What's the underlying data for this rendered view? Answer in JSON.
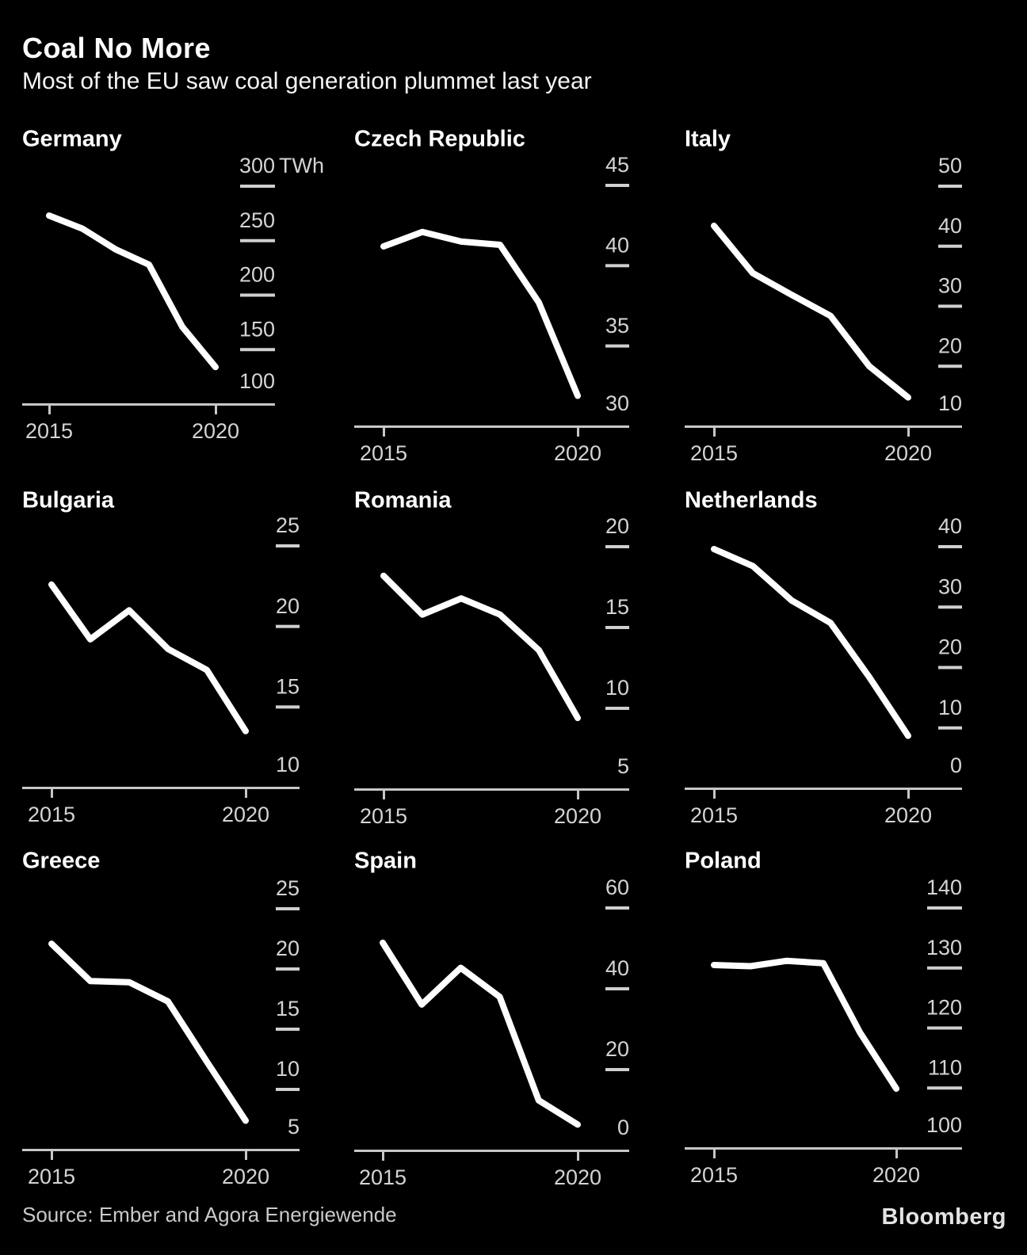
{
  "header": {
    "title": "Coal No More",
    "subtitle": "Most of the EU saw coal generation plummet last year"
  },
  "footer": {
    "source": "Source: Ember and Agora Energiewende",
    "brand": "Bloomberg"
  },
  "colors": {
    "background": "#000000",
    "series_line": "#ffffff",
    "axis": "#c7c7c7",
    "tick_label": "#d4d4d4",
    "title": "#ffffff",
    "source_text": "#c9c9c9"
  },
  "years": [
    2015,
    2016,
    2017,
    2018,
    2019,
    2020
  ],
  "x_tick_labels": [
    "2015",
    "2020"
  ],
  "chart_data": [
    {
      "type": "line",
      "title": "Germany",
      "unit": "TWh",
      "x": [
        2015,
        2016,
        2017,
        2018,
        2019,
        2020
      ],
      "values": [
        273,
        261,
        242,
        228,
        171,
        134
      ],
      "yticks": [
        300,
        250,
        200,
        150,
        100
      ],
      "ylim": [
        100,
        300
      ],
      "xlabel": "",
      "ylabel": "TWh",
      "grid": false,
      "legend": "none"
    },
    {
      "type": "line",
      "title": "Czech Republic",
      "x": [
        2015,
        2016,
        2017,
        2018,
        2019,
        2020
      ],
      "values": [
        41.2,
        42.1,
        41.5,
        41.3,
        37.7,
        31.9
      ],
      "yticks": [
        45,
        40,
        35,
        30
      ],
      "ylim": [
        30,
        45
      ],
      "xlabel": "",
      "ylabel": "TWh",
      "grid": false,
      "legend": "none"
    },
    {
      "type": "line",
      "title": "Italy",
      "x": [
        2015,
        2016,
        2017,
        2018,
        2019,
        2020
      ],
      "values": [
        43.4,
        35.5,
        31.9,
        28.4,
        20,
        14.8
      ],
      "yticks": [
        50,
        40,
        30,
        20,
        10
      ],
      "ylim": [
        10,
        50
      ],
      "xlabel": "",
      "ylabel": "TWh",
      "grid": false,
      "legend": "none"
    },
    {
      "type": "line",
      "title": "Bulgaria",
      "x": [
        2015,
        2016,
        2017,
        2018,
        2019,
        2020
      ],
      "values": [
        22.6,
        19.2,
        21,
        18.6,
        17.3,
        13.5
      ],
      "yticks": [
        25,
        20,
        15,
        10
      ],
      "ylim": [
        10,
        25
      ],
      "xlabel": "",
      "ylabel": "TWh",
      "grid": false,
      "legend": "none"
    },
    {
      "type": "line",
      "title": "Romania",
      "x": [
        2015,
        2016,
        2017,
        2018,
        2019,
        2020
      ],
      "values": [
        18.2,
        15.8,
        16.8,
        15.8,
        13.6,
        9.4
      ],
      "yticks": [
        20,
        15,
        10,
        5
      ],
      "ylim": [
        5,
        20
      ],
      "xlabel": "",
      "ylabel": "TWh",
      "grid": false,
      "legend": "none"
    },
    {
      "type": "line",
      "title": "Netherlands",
      "x": [
        2015,
        2016,
        2017,
        2018,
        2019,
        2020
      ],
      "values": [
        39.6,
        36.8,
        31.1,
        27.4,
        18.4,
        8.7
      ],
      "yticks": [
        40,
        30,
        20,
        10,
        0
      ],
      "ylim": [
        0,
        40
      ],
      "xlabel": "",
      "ylabel": "TWh",
      "grid": false,
      "legend": "none"
    },
    {
      "type": "line",
      "title": "Greece",
      "x": [
        2015,
        2016,
        2017,
        2018,
        2019,
        2020
      ],
      "values": [
        22.1,
        19,
        18.9,
        17.3,
        12.3,
        7.4
      ],
      "yticks": [
        25,
        20,
        15,
        10,
        5
      ],
      "ylim": [
        5,
        25
      ],
      "xlabel": "",
      "ylabel": "TWh",
      "grid": false,
      "legend": "none"
    },
    {
      "type": "line",
      "title": "Spain",
      "x": [
        2015,
        2016,
        2017,
        2018,
        2019,
        2020
      ],
      "values": [
        51.4,
        36.1,
        45.2,
        38,
        12.4,
        6.4
      ],
      "yticks": [
        60,
        40,
        20,
        0
      ],
      "ylim": [
        0,
        60
      ],
      "xlabel": "",
      "ylabel": "TWh",
      "grid": false,
      "legend": "none"
    },
    {
      "type": "line",
      "title": "Poland",
      "x": [
        2015,
        2016,
        2017,
        2018,
        2019,
        2020
      ],
      "values": [
        130.5,
        130.3,
        131.2,
        130.8,
        119.3,
        109.9
      ],
      "yticks": [
        140,
        130,
        120,
        110,
        100
      ],
      "ylim": [
        100,
        140
      ],
      "xlabel": "",
      "ylabel": "TWh",
      "grid": false,
      "legend": "none"
    }
  ]
}
